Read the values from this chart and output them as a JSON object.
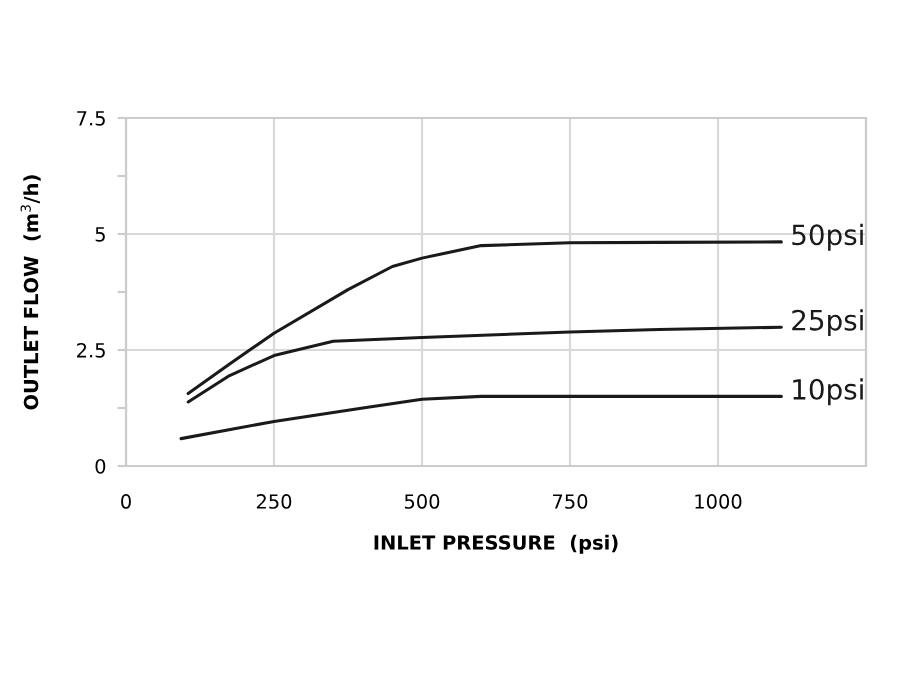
{
  "chart_data": {
    "type": "line",
    "xlabel": "INLET PRESSURE  (psi)",
    "ylabel": "OUTLET FLOW  (m$^{3}$/h)",
    "xlim": [
      0,
      1250
    ],
    "xticks": [
      0,
      250,
      500,
      750,
      1000
    ],
    "ylim": [
      0,
      7.5
    ],
    "yticks": [
      0,
      {
        "value": 1.25,
        "label": null
      },
      2.5,
      {
        "value": 3.75,
        "label": null
      },
      5,
      {
        "value": 6.25,
        "label": null
      },
      7.5
    ],
    "grid": true,
    "marker": "none",
    "line_style": "solid",
    "series": [
      {
        "name": "50psi",
        "color": "#1a1a1a",
        "x": [
          105,
          175,
          250,
          375,
          450,
          500,
          600,
          750,
          900,
          1107
        ],
        "values": [
          1.56,
          2.2,
          2.86,
          3.8,
          4.3,
          4.48,
          4.75,
          4.81,
          4.82,
          4.83
        ]
      },
      {
        "name": "25psi",
        "color": "#1a1a1a",
        "x": [
          105,
          175,
          250,
          350,
          500,
          750,
          900,
          1107
        ],
        "values": [
          1.38,
          1.95,
          2.38,
          2.69,
          2.77,
          2.89,
          2.94,
          2.99
        ]
      },
      {
        "name": "10psi",
        "color": "#1a1a1a",
        "x": [
          93,
          250,
          400,
          500,
          600,
          750,
          1107
        ],
        "values": [
          0.59,
          0.96,
          1.25,
          1.44,
          1.5,
          1.5,
          1.5
        ]
      }
    ]
  }
}
